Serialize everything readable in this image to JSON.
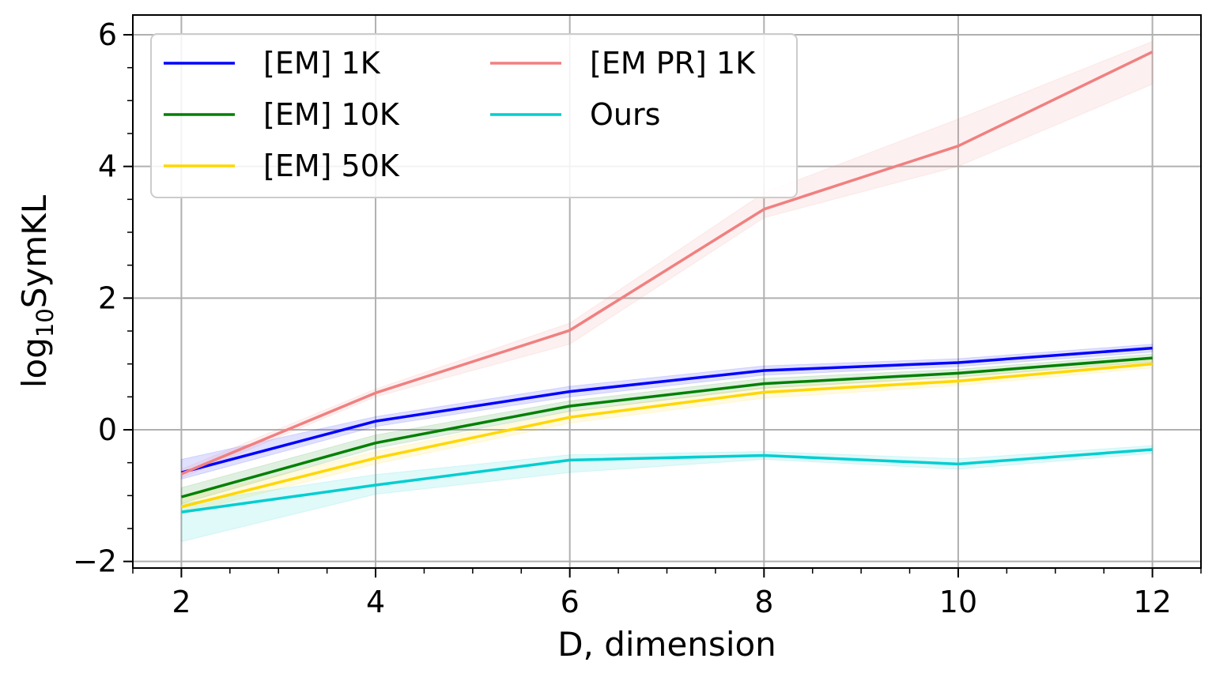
{
  "chart_data": {
    "type": "line",
    "title": "",
    "xlabel": "D, dimension",
    "ylabel": "log10SymKL",
    "ylabel_parts": {
      "base": "log",
      "sub": "10",
      "rest": "SymKL"
    },
    "x": [
      2,
      4,
      6,
      8,
      10,
      12
    ],
    "xlim": [
      1.5,
      12.5
    ],
    "ylim": [
      -2.1,
      6.3
    ],
    "xticks": [
      2,
      4,
      6,
      8,
      10,
      12
    ],
    "xtick_labels": [
      "2",
      "4",
      "6",
      "8",
      "10",
      "12"
    ],
    "yticks": [
      -2,
      0,
      2,
      4,
      6
    ],
    "ytick_labels": [
      "−2",
      "0",
      "2",
      "4",
      "6"
    ],
    "x_minor_step": 0.5,
    "y_minor_step": 0.5,
    "grid": true,
    "legend_position": "top-left",
    "legend_columns": 2,
    "series": [
      {
        "name": "[EM] 1K",
        "color": "#0000ff",
        "values": [
          -0.65,
          0.13,
          0.58,
          0.9,
          1.02,
          1.24
        ],
        "lower": [
          -0.75,
          0.05,
          0.5,
          0.83,
          0.96,
          1.18
        ],
        "upper": [
          -0.45,
          0.2,
          0.66,
          0.97,
          1.08,
          1.3
        ]
      },
      {
        "name": "[EM] 10K",
        "color": "#008000",
        "values": [
          -1.02,
          -0.2,
          0.36,
          0.7,
          0.86,
          1.09
        ],
        "lower": [
          -1.12,
          -0.28,
          0.28,
          0.63,
          0.8,
          1.03
        ],
        "upper": [
          -0.88,
          -0.08,
          0.44,
          0.78,
          0.92,
          1.15
        ]
      },
      {
        "name": "[EM] 50K",
        "color": "#ffd700",
        "values": [
          -1.17,
          -0.43,
          0.19,
          0.57,
          0.74,
          1.0
        ],
        "lower": [
          -1.28,
          -0.52,
          0.1,
          0.48,
          0.67,
          0.94
        ],
        "upper": [
          -1.04,
          -0.33,
          0.28,
          0.65,
          0.81,
          1.06
        ]
      },
      {
        "name": "[EM PR] 1K",
        "color": "#f08080",
        "values": [
          -0.67,
          0.56,
          1.51,
          3.35,
          4.31,
          5.74
        ],
        "lower": [
          -0.73,
          0.5,
          1.3,
          3.22,
          4.0,
          5.25
        ],
        "upper": [
          -0.6,
          0.62,
          1.62,
          3.6,
          4.72,
          5.9
        ]
      },
      {
        "name": "Ours",
        "color": "#00ced1",
        "values": [
          -1.25,
          -0.84,
          -0.46,
          -0.39,
          -0.52,
          -0.3
        ],
        "lower": [
          -1.7,
          -0.98,
          -0.65,
          -0.45,
          -0.6,
          -0.36
        ],
        "upper": [
          -1.12,
          -0.68,
          -0.38,
          -0.33,
          -0.44,
          -0.24
        ]
      }
    ]
  }
}
